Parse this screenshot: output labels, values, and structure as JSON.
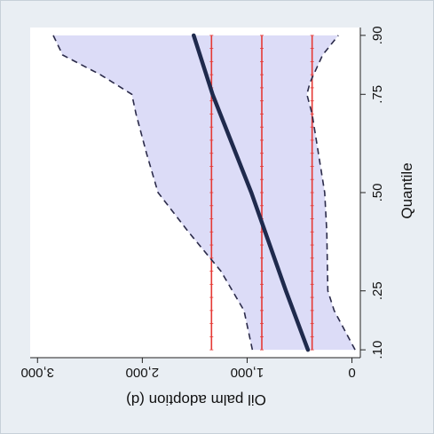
{
  "chart_data": {
    "type": "line",
    "orientation": "rotated-180",
    "xlabel": "Quantile",
    "ylabel": "Oil palm adoption (d)",
    "x_ticks": [
      {
        "value": 0.1,
        "label": ".10"
      },
      {
        "value": 0.25,
        "label": ".25"
      },
      {
        "value": 0.5,
        "label": ".50"
      },
      {
        "value": 0.75,
        "label": ".75"
      },
      {
        "value": 0.9,
        "label": ".90"
      }
    ],
    "y_ticks": [
      {
        "value": 0,
        "label": "0"
      },
      {
        "value": 1000,
        "label": "1,000"
      },
      {
        "value": 2000,
        "label": "2,000"
      },
      {
        "value": 3000,
        "label": "3,000"
      }
    ],
    "xlim": [
      0.08,
      0.92
    ],
    "ylim": [
      -80,
      3070
    ],
    "grid": false,
    "series": [
      {
        "role": "quantile-estimate",
        "style": "solid",
        "color": "#1f2a4d",
        "x": [
          0.1,
          0.25,
          0.5,
          0.75,
          0.9
        ],
        "y": [
          420,
          630,
          960,
          1330,
          1510
        ]
      },
      {
        "role": "ci-upper",
        "style": "dashed",
        "color": "#2b2b4a",
        "x": [
          0.1,
          0.2,
          0.3,
          0.4,
          0.5,
          0.6,
          0.7,
          0.75,
          0.8,
          0.85,
          0.9
        ],
        "y": [
          950,
          1030,
          1250,
          1560,
          1850,
          1960,
          2060,
          2100,
          2400,
          2760,
          2850
        ]
      },
      {
        "role": "ci-lower",
        "style": "dashed",
        "color": "#2b2b4a",
        "x": [
          0.1,
          0.2,
          0.25,
          0.4,
          0.5,
          0.6,
          0.7,
          0.75,
          0.78,
          0.85,
          0.9
        ],
        "y": [
          -30,
          170,
          230,
          240,
          260,
          320,
          380,
          430,
          400,
          280,
          130
        ]
      },
      {
        "role": "reference-line",
        "style": "solid",
        "color": "#e53935",
        "value": 1340
      },
      {
        "role": "reference-line",
        "style": "solid",
        "color": "#e53935",
        "value": 860
      },
      {
        "role": "reference-line",
        "style": "solid",
        "color": "#e53935",
        "value": 380
      }
    ],
    "band_color": "#dcdcf7"
  }
}
